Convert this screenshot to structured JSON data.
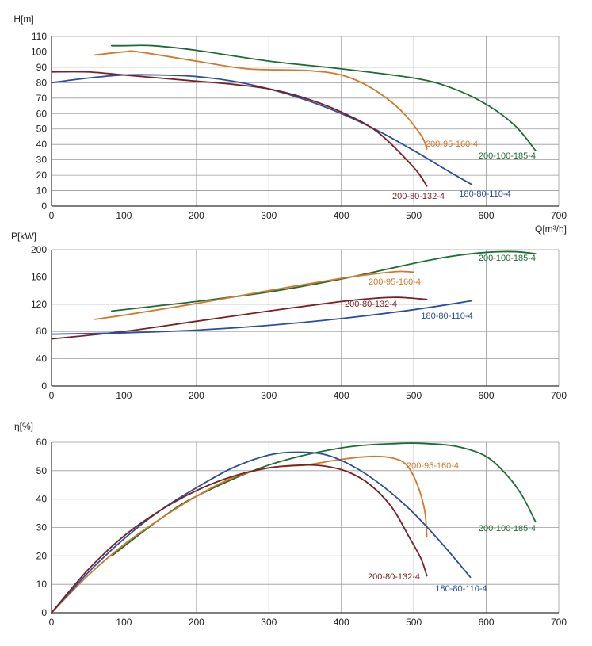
{
  "chart_data": [
    {
      "type": "line",
      "ylabel": "H[m]",
      "xlabel": "Q[m³/h]",
      "xlim": [
        0,
        700
      ],
      "ylim": [
        0,
        110
      ],
      "xticks": [
        "0",
        "100",
        "200",
        "300",
        "400",
        "500",
        "600",
        "700"
      ],
      "yticks": [
        "0",
        "10",
        "20",
        "30",
        "40",
        "50",
        "60",
        "70",
        "80",
        "90",
        "100",
        "110"
      ],
      "grid": true,
      "series": [
        {
          "name": "200-100-185-4",
          "color": "#1f6b36",
          "points": [
            [
              83,
              104
            ],
            [
              100,
              104
            ],
            [
              140,
              104
            ],
            [
              200,
              101
            ],
            [
              300,
              94
            ],
            [
              400,
              89
            ],
            [
              500,
              83
            ],
            [
              550,
              77
            ],
            [
              600,
              66
            ],
            [
              640,
              52
            ],
            [
              668,
              36
            ]
          ]
        },
        {
          "name": "200-95-160-4",
          "color": "#d4782a",
          "points": [
            [
              60,
              98
            ],
            [
              100,
              100
            ],
            [
              120,
              100
            ],
            [
              200,
              94
            ],
            [
              270,
              89
            ],
            [
              350,
              88
            ],
            [
              400,
              85
            ],
            [
              440,
              77
            ],
            [
              480,
              63
            ],
            [
              510,
              46
            ],
            [
              518,
              37
            ]
          ]
        },
        {
          "name": "180-80-110-4",
          "color": "#2a4fa0",
          "points": [
            [
              0,
              80
            ],
            [
              50,
              83
            ],
            [
              100,
              85
            ],
            [
              150,
              85
            ],
            [
              200,
              84
            ],
            [
              250,
              81
            ],
            [
              300,
              76
            ],
            [
              350,
              69
            ],
            [
              400,
              60
            ],
            [
              450,
              49
            ],
            [
              500,
              36
            ],
            [
              550,
              22
            ],
            [
              580,
              14
            ]
          ]
        },
        {
          "name": "200-80-132-4",
          "color": "#7a1f22",
          "points": [
            [
              0,
              87
            ],
            [
              50,
              87
            ],
            [
              100,
              85
            ],
            [
              150,
              83
            ],
            [
              200,
              81
            ],
            [
              250,
              79
            ],
            [
              300,
              76
            ],
            [
              350,
              70
            ],
            [
              400,
              61
            ],
            [
              450,
              48
            ],
            [
              500,
              25
            ],
            [
              518,
              13
            ]
          ]
        }
      ]
    },
    {
      "type": "line",
      "ylabel": "P[kW]",
      "xlabel": "",
      "xlim": [
        0,
        700
      ],
      "ylim": [
        0,
        200
      ],
      "xticks": [
        "0",
        "100",
        "200",
        "300",
        "400",
        "500",
        "600",
        "700"
      ],
      "yticks": [
        "0",
        "40",
        "80",
        "120",
        "160",
        "200"
      ],
      "grid": true,
      "series": [
        {
          "name": "200-100-185-4",
          "color": "#1f6b36",
          "points": [
            [
              83,
              110
            ],
            [
              150,
              118
            ],
            [
              200,
              124
            ],
            [
              300,
              138
            ],
            [
              400,
              157
            ],
            [
              500,
              180
            ],
            [
              550,
              190
            ],
            [
              600,
              196
            ],
            [
              640,
              197
            ],
            [
              668,
              194
            ]
          ]
        },
        {
          "name": "200-95-160-4",
          "color": "#d4782a",
          "points": [
            [
              60,
              98
            ],
            [
              100,
              104
            ],
            [
              200,
              121
            ],
            [
              300,
              140
            ],
            [
              400,
              158
            ],
            [
              450,
              165
            ],
            [
              480,
              168
            ],
            [
              500,
              167
            ]
          ]
        },
        {
          "name": "200-80-132-4",
          "color": "#7a1f22",
          "points": [
            [
              0,
              69
            ],
            [
              100,
              80
            ],
            [
              200,
              95
            ],
            [
              300,
              110
            ],
            [
              400,
              124
            ],
            [
              450,
              129
            ],
            [
              480,
              130
            ],
            [
              518,
              127
            ]
          ]
        },
        {
          "name": "180-80-110-4",
          "color": "#2a4fa0",
          "points": [
            [
              0,
              76
            ],
            [
              100,
              78
            ],
            [
              200,
              82
            ],
            [
              300,
              89
            ],
            [
              400,
              99
            ],
            [
              500,
              112
            ],
            [
              580,
              125
            ]
          ]
        }
      ]
    },
    {
      "type": "line",
      "ylabel": "η[%]",
      "xlabel": "",
      "xlim": [
        0,
        700
      ],
      "ylim": [
        0,
        60
      ],
      "xticks": [
        "0",
        "100",
        "200",
        "300",
        "400",
        "500",
        "600",
        "700"
      ],
      "yticks": [
        "0",
        "10",
        "20",
        "30",
        "40",
        "50",
        "60"
      ],
      "grid": true,
      "series": [
        {
          "name": "200-100-185-4",
          "color": "#1f6b36",
          "points": [
            [
              83,
              20
            ],
            [
              150,
              33
            ],
            [
              200,
              41
            ],
            [
              300,
              52
            ],
            [
              400,
              58
            ],
            [
              480,
              59.6
            ],
            [
              520,
              59.5
            ],
            [
              560,
              58.5
            ],
            [
              600,
              55
            ],
            [
              630,
              48
            ],
            [
              650,
              41
            ],
            [
              668,
              32
            ]
          ]
        },
        {
          "name": "200-95-160-4",
          "color": "#d4782a",
          "points": [
            [
              0,
              0
            ],
            [
              50,
              13
            ],
            [
              100,
              24
            ],
            [
              150,
              33
            ],
            [
              200,
              41
            ],
            [
              250,
              47.5
            ],
            [
              300,
              51
            ],
            [
              350,
              52
            ],
            [
              400,
              54
            ],
            [
              440,
              55
            ],
            [
              470,
              54.5
            ],
            [
              490,
              52
            ],
            [
              505,
              45
            ],
            [
              515,
              36
            ],
            [
              518,
              27
            ]
          ]
        },
        {
          "name": "180-80-110-4",
          "color": "#2a4fa0",
          "points": [
            [
              0,
              0
            ],
            [
              50,
              14
            ],
            [
              100,
              26
            ],
            [
              150,
              36
            ],
            [
              200,
              44
            ],
            [
              250,
              51
            ],
            [
              300,
              55.5
            ],
            [
              340,
              56.5
            ],
            [
              380,
              55.5
            ],
            [
              420,
              51
            ],
            [
              460,
              44
            ],
            [
              500,
              35
            ],
            [
              540,
              24
            ],
            [
              578,
              12.5
            ]
          ]
        },
        {
          "name": "200-80-132-4",
          "color": "#7a1f22",
          "points": [
            [
              0,
              0
            ],
            [
              50,
              15
            ],
            [
              100,
              27
            ],
            [
              150,
              36
            ],
            [
              200,
              43
            ],
            [
              250,
              48
            ],
            [
              300,
              51
            ],
            [
              350,
              52
            ],
            [
              380,
              51.5
            ],
            [
              410,
              49.5
            ],
            [
              440,
              45
            ],
            [
              470,
              37
            ],
            [
              495,
              26
            ],
            [
              510,
              19
            ],
            [
              518,
              13
            ]
          ]
        }
      ]
    }
  ]
}
